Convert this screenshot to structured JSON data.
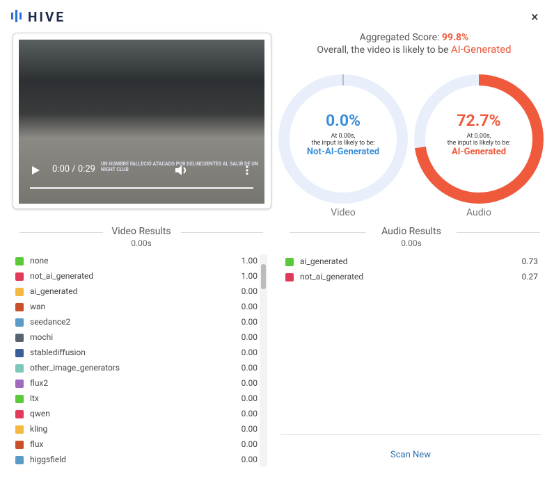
{
  "header": {
    "brand": "HIVE",
    "close": "×"
  },
  "video": {
    "ticker": "UN HOMBRE FALLECIÓ ATACADO POR DELINCUENTES AL SALIR DE UN NIGHT CLUB",
    "time": "0:00 / 0:29"
  },
  "summary": {
    "label": "Aggregated Score:",
    "score": "99.8%",
    "text": "Overall, the video is likely to be",
    "verdict": "AI-Generated"
  },
  "gauges": [
    {
      "value": 0.0,
      "label": "0.0%",
      "at": "At 0.00s,",
      "line": "the input is likely to be:",
      "result": "Not-AI-Generated",
      "caption": "Video",
      "color": "#3b8fd8"
    },
    {
      "value": 72.7,
      "label": "72.7%",
      "at": "At 0.00s,",
      "line": "the input is likely to be:",
      "result": "AI-Generated",
      "caption": "Audio",
      "color": "#f05a3c"
    }
  ],
  "video_results": {
    "title": "Video Results",
    "time": "0.00s",
    "rows": [
      {
        "label": "none",
        "value": "1.00",
        "color": "#5cc93b"
      },
      {
        "label": "not_ai_generated",
        "value": "1.00",
        "color": "#e23a5a"
      },
      {
        "label": "ai_generated",
        "value": "0.00",
        "color": "#f5b942"
      },
      {
        "label": "wan",
        "value": "0.00",
        "color": "#c8502a"
      },
      {
        "label": "seedance2",
        "value": "0.00",
        "color": "#5b9bc8"
      },
      {
        "label": "mochi",
        "value": "0.00",
        "color": "#5a6470"
      },
      {
        "label": "stablediffusion",
        "value": "0.00",
        "color": "#3a5e99"
      },
      {
        "label": "other_image_generators",
        "value": "0.00",
        "color": "#7ec8b8"
      },
      {
        "label": "flux2",
        "value": "0.00",
        "color": "#a06bbf"
      },
      {
        "label": "ltx",
        "value": "0.00",
        "color": "#5cc93b"
      },
      {
        "label": "qwen",
        "value": "0.00",
        "color": "#e23a5a"
      },
      {
        "label": "kling",
        "value": "0.00",
        "color": "#f5b942"
      },
      {
        "label": "flux",
        "value": "0.00",
        "color": "#c8502a"
      },
      {
        "label": "higgsfield",
        "value": "0.00",
        "color": "#5b9bc8"
      }
    ]
  },
  "audio_results": {
    "title": "Audio Results",
    "time": "0.00s",
    "rows": [
      {
        "label": "ai_generated",
        "value": "0.73",
        "color": "#5cc93b"
      },
      {
        "label": "not_ai_generated",
        "value": "0.27",
        "color": "#e23a5a"
      }
    ]
  },
  "scan_new": "Scan New"
}
